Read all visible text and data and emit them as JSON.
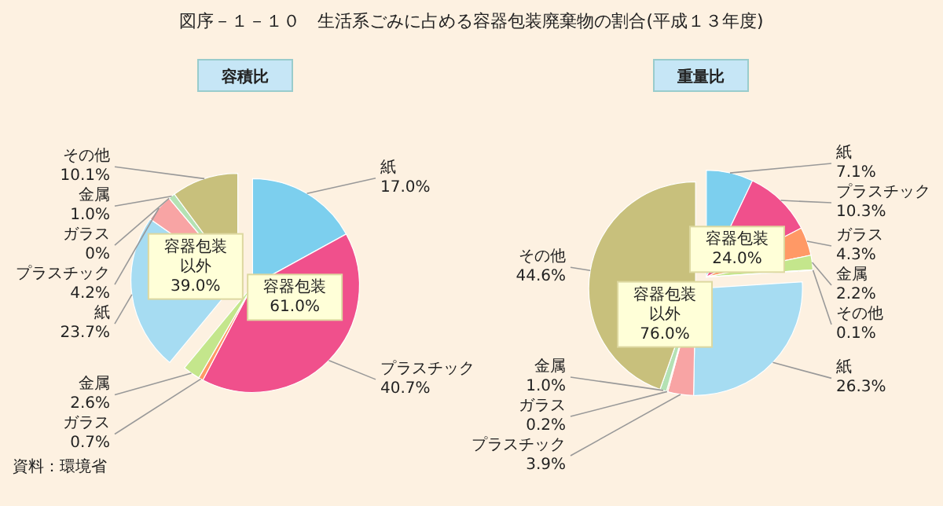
{
  "chart_data": [
    {
      "type": "pie",
      "title": "図序－１－１０　生活系ごみに占める容器包装廃棄物の割合(平成１３年度)",
      "subtitle": "容積比",
      "categories": [
        "紙",
        "プラスチック",
        "ガラス",
        "金属",
        "紙",
        "プラスチック",
        "ガラス",
        "金属",
        "その他"
      ],
      "values": [
        17.0,
        40.7,
        0.7,
        2.6,
        23.7,
        4.2,
        0,
        1.0,
        10.1
      ],
      "value_labels": [
        "17.0%",
        "40.7%",
        "0.7%",
        "2.6%",
        "23.7%",
        "4.2%",
        "0%",
        "1.0%",
        "10.1%"
      ],
      "colors": [
        "#7ccfee",
        "#f0508c",
        "#ff9966",
        "#c4e68c",
        "#a6dcf2",
        "#f8a4a4",
        "#ffd0a0",
        "#b4e2b4",
        "#c8c07c"
      ],
      "annotations": [
        "容器包装\n61.0%",
        "容器包装以外\n39.0%",
        "資料：環境省"
      ]
    },
    {
      "type": "pie",
      "subtitle": "重量比",
      "categories": [
        "紙",
        "プラスチック",
        "ガラス",
        "金属",
        "その他",
        "紙",
        "プラスチック",
        "ガラス",
        "金属",
        "その他"
      ],
      "values": [
        7.1,
        10.3,
        4.3,
        2.2,
        0.1,
        26.3,
        3.9,
        0.2,
        1.0,
        44.6
      ],
      "value_labels": [
        "7.1%",
        "10.3%",
        "4.3%",
        "2.2%",
        "0.1%",
        "26.3%",
        "3.9%",
        "0.2%",
        "1.0%",
        "44.6%"
      ],
      "colors": [
        "#7ccfee",
        "#f0508c",
        "#ff9966",
        "#c4e68c",
        "#c8c07c",
        "#a6dcf2",
        "#f8a4a4",
        "#ffd0a0",
        "#b4e2b4",
        "#c8c07c"
      ],
      "annotations": [
        "容器包装\n24.0%",
        "容器包装以外\n76.0%"
      ]
    }
  ]
}
